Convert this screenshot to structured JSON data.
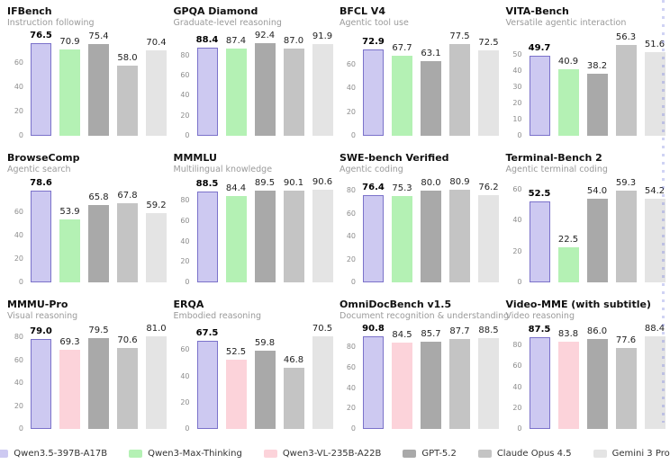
{
  "page": {
    "background": "#ffffff"
  },
  "colors": {
    "Qwen3.5-397B-A17B": {
      "fill": "#cdc9f1",
      "border": "#7b72ca"
    },
    "Qwen3-Max-Thinking": {
      "fill": "#b4f1b4",
      "border": null
    },
    "Qwen3-VL-235B-A22B": {
      "fill": "#fcd3da",
      "border": null
    },
    "GPT-5.2": {
      "fill": "#a9a9a9",
      "border": null
    },
    "Claude Opus 4.5": {
      "fill": "#c4c4c4",
      "border": null
    },
    "Gemini 3 Pro": {
      "fill": "#e4e4e4",
      "border": null
    }
  },
  "legend": {
    "items": [
      {
        "label": "Qwen3.5-397B-A17B"
      },
      {
        "label": "Qwen3-Max-Thinking"
      },
      {
        "label": "Qwen3-VL-235B-A22B"
      },
      {
        "label": "GPT-5.2"
      },
      {
        "label": "Claude Opus 4.5"
      },
      {
        "label": "Gemini 3 Pro"
      }
    ]
  },
  "chart_data": [
    {
      "type": "bar",
      "title": "IFBench",
      "subtitle": "Instruction following",
      "ticks": [
        0,
        20,
        40,
        60
      ],
      "ylim": [
        0,
        80
      ],
      "grid": false,
      "legend_position": "bottom-shared",
      "categories": [
        "Qwen3.5-397B-A17B",
        "Qwen3-Max-Thinking",
        "GPT-5.2",
        "Claude Opus 4.5",
        "Gemini 3 Pro"
      ],
      "values": [
        76.5,
        70.9,
        75.4,
        58.0,
        70.4
      ]
    },
    {
      "type": "bar",
      "title": "GPQA Diamond",
      "subtitle": "Graduate-level reasoning",
      "ticks": [
        0,
        20,
        40,
        60,
        80
      ],
      "ylim": [
        0,
        97
      ],
      "grid": false,
      "legend_position": "bottom-shared",
      "categories": [
        "Qwen3.5-397B-A17B",
        "Qwen3-Max-Thinking",
        "GPT-5.2",
        "Claude Opus 4.5",
        "Gemini 3 Pro"
      ],
      "values": [
        88.4,
        87.4,
        92.4,
        87.0,
        91.9
      ]
    },
    {
      "type": "bar",
      "title": "BFCL V4",
      "subtitle": "Agentic tool use",
      "ticks": [
        0,
        20,
        40,
        60
      ],
      "ylim": [
        0,
        82
      ],
      "grid": false,
      "legend_position": "bottom-shared",
      "categories": [
        "Qwen3.5-397B-A17B",
        "Qwen3-Max-Thinking",
        "GPT-5.2",
        "Claude Opus 4.5",
        "Gemini 3 Pro"
      ],
      "values": [
        72.9,
        67.7,
        63.1,
        77.5,
        72.5
      ]
    },
    {
      "type": "bar",
      "title": "VITA-Bench",
      "subtitle": "Versatile agentic interaction",
      "ticks": [
        0,
        10,
        20,
        30,
        40,
        50
      ],
      "ylim": [
        0,
        60
      ],
      "grid": false,
      "legend_position": "bottom-shared",
      "categories": [
        "Qwen3.5-397B-A17B",
        "Qwen3-Max-Thinking",
        "GPT-5.2",
        "Claude Opus 4.5",
        "Gemini 3 Pro"
      ],
      "values": [
        49.7,
        40.9,
        38.2,
        56.3,
        51.6
      ]
    },
    {
      "type": "bar",
      "title": "BrowseComp",
      "subtitle": "Agentic search",
      "ticks": [
        0,
        20,
        40,
        60
      ],
      "ylim": [
        0,
        83
      ],
      "grid": false,
      "legend_position": "bottom-shared",
      "categories": [
        "Qwen3.5-397B-A17B",
        "Qwen3-Max-Thinking",
        "GPT-5.2",
        "Claude Opus 4.5",
        "Gemini 3 Pro"
      ],
      "values": [
        78.6,
        53.9,
        65.8,
        67.8,
        59.2
      ]
    },
    {
      "type": "bar",
      "title": "MMMLU",
      "subtitle": "Multilingual knowledge",
      "ticks": [
        0,
        20,
        40,
        60,
        80
      ],
      "ylim": [
        0,
        95
      ],
      "grid": false,
      "legend_position": "bottom-shared",
      "categories": [
        "Qwen3.5-397B-A17B",
        "Qwen3-Max-Thinking",
        "GPT-5.2",
        "Claude Opus 4.5",
        "Gemini 3 Pro"
      ],
      "values": [
        88.5,
        84.4,
        89.5,
        90.1,
        90.6
      ]
    },
    {
      "type": "bar",
      "title": "SWE-bench Verified",
      "subtitle": "Agentic coding",
      "ticks": [
        0,
        20,
        40,
        60,
        80
      ],
      "ylim": [
        0,
        85
      ],
      "grid": false,
      "legend_position": "bottom-shared",
      "categories": [
        "Qwen3.5-397B-A17B",
        "Qwen3-Max-Thinking",
        "GPT-5.2",
        "Claude Opus 4.5",
        "Gemini 3 Pro"
      ],
      "values": [
        76.4,
        75.3,
        80.0,
        80.9,
        76.2
      ]
    },
    {
      "type": "bar",
      "title": "Terminal-Bench 2",
      "subtitle": "Agentic terminal coding",
      "ticks": [
        0,
        20,
        40,
        60
      ],
      "ylim": [
        0,
        63
      ],
      "grid": false,
      "legend_position": "bottom-shared",
      "categories": [
        "Qwen3.5-397B-A17B",
        "Qwen3-Max-Thinking",
        "GPT-5.2",
        "Claude Opus 4.5",
        "Gemini 3 Pro"
      ],
      "values": [
        52.5,
        22.5,
        54.0,
        59.3,
        54.2
      ]
    },
    {
      "type": "bar",
      "title": "MMMU-Pro",
      "subtitle": "Visual reasoning",
      "ticks": [
        0,
        20,
        40,
        60,
        80
      ],
      "ylim": [
        0,
        85
      ],
      "grid": false,
      "legend_position": "bottom-shared",
      "categories": [
        "Qwen3.5-397B-A17B",
        "Qwen3-VL-235B-A22B",
        "GPT-5.2",
        "Claude Opus 4.5",
        "Gemini 3 Pro"
      ],
      "values": [
        79.0,
        69.3,
        79.5,
        70.6,
        81.0
      ]
    },
    {
      "type": "bar",
      "title": "ERQA",
      "subtitle": "Embodied reasoning",
      "ticks": [
        0,
        20,
        40,
        60
      ],
      "ylim": [
        0,
        74
      ],
      "grid": false,
      "legend_position": "bottom-shared",
      "categories": [
        "Qwen3.5-397B-A17B",
        "Qwen3-VL-235B-A22B",
        "GPT-5.2",
        "Claude Opus 4.5",
        "Gemini 3 Pro"
      ],
      "values": [
        67.5,
        52.5,
        59.8,
        46.8,
        70.5
      ]
    },
    {
      "type": "bar",
      "title": "OmniDocBench v1.5",
      "subtitle": "Document recognition & understanding",
      "ticks": [
        0,
        20,
        40,
        60,
        80
      ],
      "ylim": [
        0,
        95
      ],
      "grid": false,
      "legend_position": "bottom-shared",
      "categories": [
        "Qwen3.5-397B-A17B",
        "Qwen3-VL-235B-A22B",
        "GPT-5.2",
        "Claude Opus 4.5",
        "Gemini 3 Pro"
      ],
      "values": [
        90.8,
        84.5,
        85.7,
        87.7,
        88.5
      ]
    },
    {
      "type": "bar",
      "title": "Video-MME (with subtitle)",
      "subtitle": "Video reasoning",
      "ticks": [
        0,
        20,
        40,
        60,
        80
      ],
      "ylim": [
        0,
        93
      ],
      "grid": false,
      "legend_position": "bottom-shared",
      "categories": [
        "Qwen3.5-397B-A17B",
        "Qwen3-VL-235B-A22B",
        "GPT-5.2",
        "Claude Opus 4.5",
        "Gemini 3 Pro"
      ],
      "values": [
        87.5,
        83.8,
        86.0,
        77.6,
        88.4
      ]
    }
  ]
}
